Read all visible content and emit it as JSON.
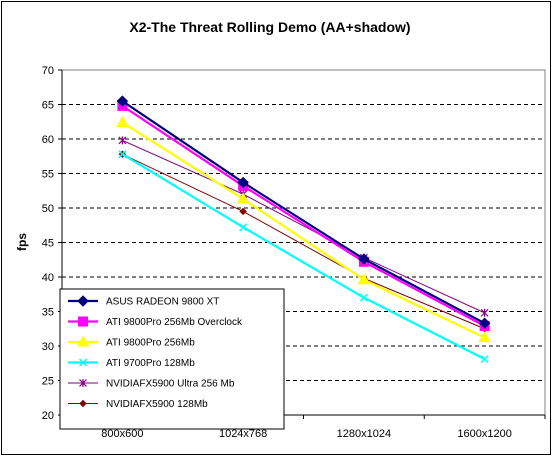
{
  "chart_data": {
    "type": "line",
    "title": "X2-The Threat Rolling Demo (AA+shadow)",
    "xlabel": "",
    "ylabel": "fps",
    "categories": [
      "800x600",
      "1024x768",
      "1280x1024",
      "1600x1200"
    ],
    "ylim": [
      20,
      70
    ],
    "yticks": [
      20,
      25,
      30,
      35,
      40,
      45,
      50,
      55,
      60,
      65,
      70
    ],
    "grid": "horizontal-dashed",
    "legend_position": "bottom-left",
    "plot_background": "#ffffff",
    "series": [
      {
        "name": "ASUS RADEON 9800 XT",
        "values": [
          65.5,
          53.7,
          42.6,
          33.3
        ],
        "color": "#000080",
        "marker": "diamond"
      },
      {
        "name": "ATI 9800Pro 256Mb Overclock",
        "values": [
          64.8,
          53.2,
          42.2,
          32.9
        ],
        "color": "#ff00ff",
        "marker": "square"
      },
      {
        "name": "ATI 9800Pro 256Mb",
        "values": [
          62.4,
          51.3,
          39.6,
          31.2
        ],
        "color": "#ffff00",
        "marker": "triangle"
      },
      {
        "name": "ATI 9700Pro 128Mb",
        "values": [
          57.8,
          47.2,
          37.0,
          28.1
        ],
        "color": "#00ffff",
        "marker": "x"
      },
      {
        "name": "NVIDIAFX5900 Ultra 256 Mb",
        "values": [
          59.8,
          52.0,
          42.8,
          34.8
        ],
        "color": "#800080",
        "marker": "star"
      },
      {
        "name": "NVIDIAFX5900 128Mb",
        "values": [
          57.8,
          49.5,
          39.8,
          32.5
        ],
        "color": "#800000",
        "marker": "diamond-small"
      }
    ]
  }
}
